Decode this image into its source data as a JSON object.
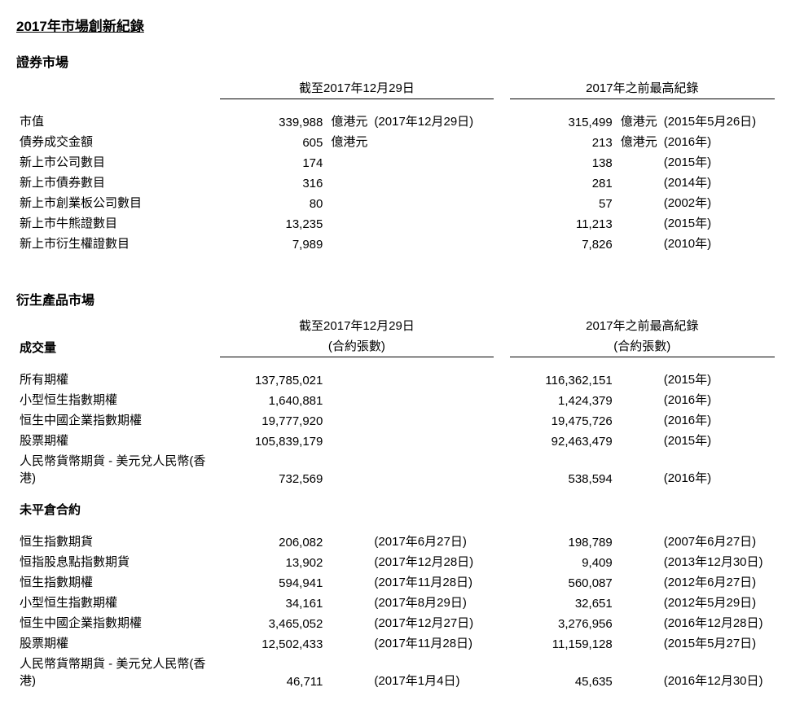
{
  "title": "2017年市場創新紀錄",
  "securities": {
    "label": "證券市場",
    "header_left": "截至2017年12月29日",
    "header_right": "2017年之前最高紀錄",
    "rows": [
      {
        "label": "市值",
        "val1": "339,988",
        "unit1": "億港元",
        "date1": "(2017年12月29日)",
        "val2": "315,499",
        "unit2": "億港元",
        "date2": "(2015年5月26日)"
      },
      {
        "label": "債券成交金額",
        "val1": "605",
        "unit1": "億港元",
        "date1": "",
        "val2": "213",
        "unit2": "億港元",
        "date2": "(2016年)"
      },
      {
        "label": "新上市公司數目",
        "val1": "174",
        "unit1": "",
        "date1": "",
        "val2": "138",
        "unit2": "",
        "date2": "(2015年)"
      },
      {
        "label": "新上市債券數目",
        "val1": "316",
        "unit1": "",
        "date1": "",
        "val2": "281",
        "unit2": "",
        "date2": "(2014年)"
      },
      {
        "label": "新上市創業板公司數目",
        "val1": "80",
        "unit1": "",
        "date1": "",
        "val2": "57",
        "unit2": "",
        "date2": "(2002年)"
      },
      {
        "label": "新上市牛熊證數目",
        "val1": "13,235",
        "unit1": "",
        "date1": "",
        "val2": "11,213",
        "unit2": "",
        "date2": "(2015年)"
      },
      {
        "label": "新上市衍生權證數目",
        "val1": "7,989",
        "unit1": "",
        "date1": "",
        "val2": "7,826",
        "unit2": "",
        "date2": "(2010年)"
      }
    ]
  },
  "derivatives": {
    "label": "衍生產品市場",
    "header_left_line1": "截至2017年12月29日",
    "header_left_line2": "(合約張數)",
    "header_right_line1": "2017年之前最高紀錄",
    "header_right_line2": "(合約張數)",
    "volume_label": "成交量",
    "volume_rows": [
      {
        "label": "所有期權",
        "val1": "137,785,021",
        "date1": "",
        "val2": "116,362,151",
        "date2": "(2015年)"
      },
      {
        "label": "小型恒生指數期權",
        "val1": "1,640,881",
        "date1": "",
        "val2": "1,424,379",
        "date2": "(2016年)"
      },
      {
        "label": "恒生中國企業指數期權",
        "val1": "19,777,920",
        "date1": "",
        "val2": "19,475,726",
        "date2": "(2016年)"
      },
      {
        "label": "股票期權",
        "val1": "105,839,179",
        "date1": "",
        "val2": "92,463,479",
        "date2": "(2015年)"
      },
      {
        "label": "人民幣貨幣期貨 - 美元兌人民幣(香港)",
        "val1": "732,569",
        "date1": "",
        "val2": "538,594",
        "date2": "(2016年)"
      }
    ],
    "oi_label": "未平倉合約",
    "oi_rows": [
      {
        "label": "恒生指數期貨",
        "val1": "206,082",
        "date1": "(2017年6月27日)",
        "val2": "198,789",
        "date2": "(2007年6月27日)"
      },
      {
        "label": "恒指股息點指數期貨",
        "val1": "13,902",
        "date1": "(2017年12月28日)",
        "val2": "9,409",
        "date2": "(2013年12月30日)"
      },
      {
        "label": "恒生指數期權",
        "val1": "594,941",
        "date1": "(2017年11月28日)",
        "val2": "560,087",
        "date2": "(2012年6月27日)"
      },
      {
        "label": "小型恒生指數期權",
        "val1": "34,161",
        "date1": "(2017年8月29日)",
        "val2": "32,651",
        "date2": "(2012年5月29日)"
      },
      {
        "label": "恒生中國企業指數期權",
        "val1": "3,465,052",
        "date1": "(2017年12月27日)",
        "val2": "3,276,956",
        "date2": "(2016年12月28日)"
      },
      {
        "label": "股票期權",
        "val1": "12,502,433",
        "date1": "(2017年11月28日)",
        "val2": "11,159,128",
        "date2": "(2015年5月27日)"
      },
      {
        "label": "人民幣貨幣期貨 - 美元兌人民幣(香港)",
        "val1": "46,711",
        "date1": "(2017年1月4日)",
        "val2": "45,635",
        "date2": "(2016年12月30日)"
      }
    ]
  },
  "colors": {
    "text": "#000000",
    "background": "#ffffff",
    "rule": "#000000"
  }
}
